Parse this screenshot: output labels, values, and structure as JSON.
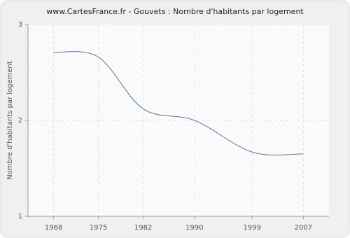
{
  "chart_data": {
    "type": "line",
    "title": "www.CartesFrance.fr - Gouvets : Nombre d'habitants par logement",
    "y_label": "Nombre d'habitants par logement",
    "x": [
      1968,
      1975,
      1982,
      1990,
      1999,
      2007
    ],
    "series": [
      {
        "name": "Nombre d'habitants par logement",
        "color": "#4f79a3",
        "values": [
          2.71,
          2.66,
          2.12,
          2.0,
          1.67,
          1.65
        ]
      }
    ],
    "xlim": [
      1964,
      2011
    ],
    "xticks": [
      1968,
      1975,
      1982,
      1990,
      1999,
      2007
    ],
    "ylim": [
      1,
      3
    ],
    "yticks": [
      1,
      2,
      3
    ],
    "grid": true
  }
}
